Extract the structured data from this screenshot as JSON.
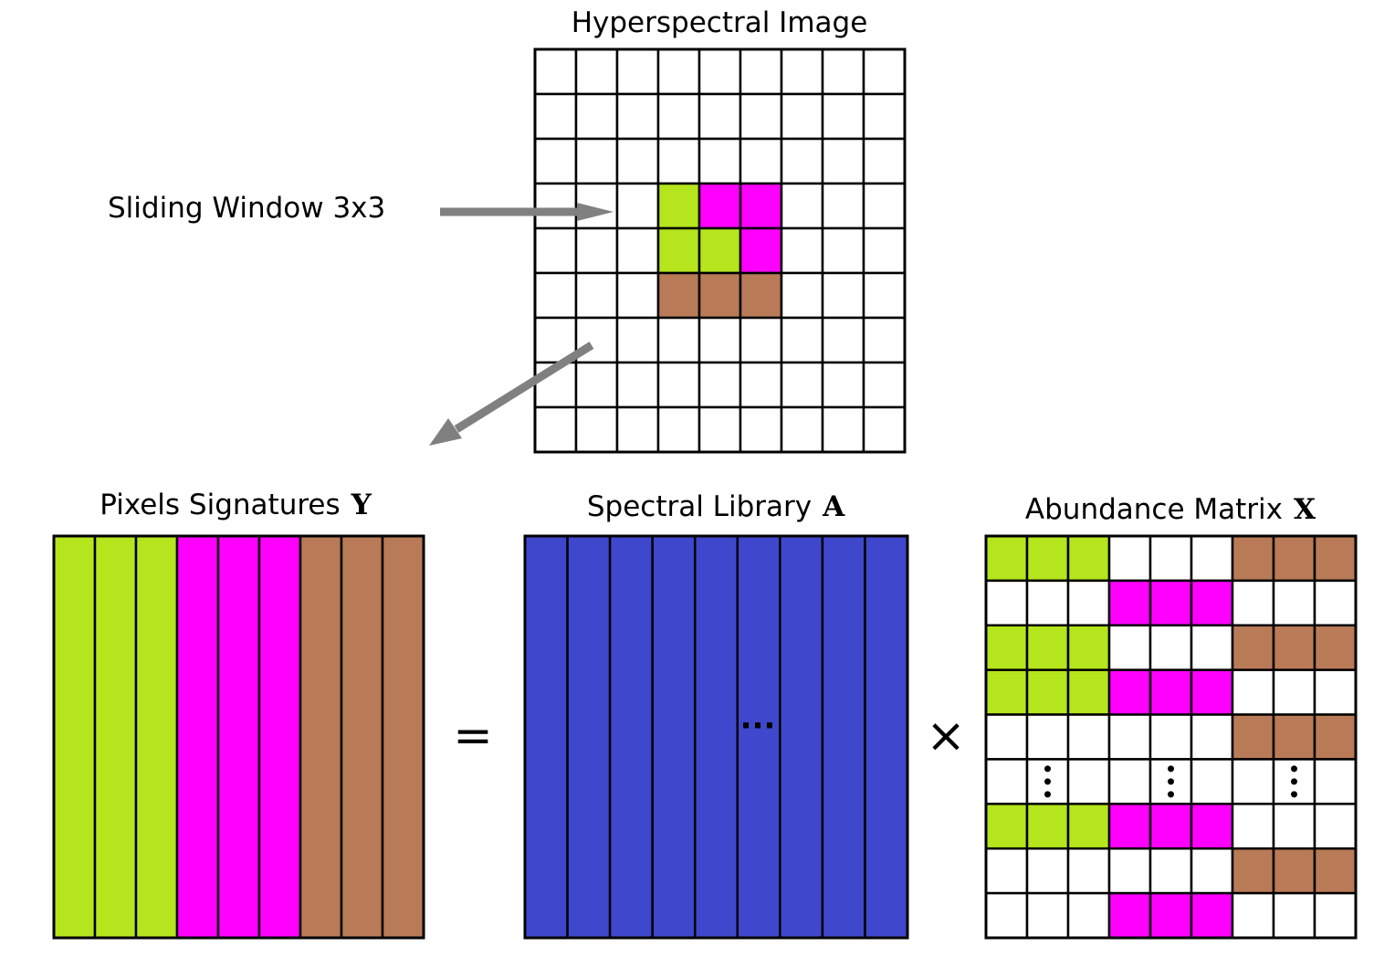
{
  "colors": {
    "green": "#b5e51d",
    "magenta": "#ff00ff",
    "brown": "#b97a57",
    "blue": "#3f48cc",
    "white": "#ffffff",
    "line": "#000000",
    "arrow": "#808080"
  },
  "hyperspectral": {
    "title": "Hyperspectral Image",
    "grid": [
      [
        "w",
        "w",
        "w",
        "w",
        "w",
        "w",
        "w",
        "w",
        "w"
      ],
      [
        "w",
        "w",
        "w",
        "w",
        "w",
        "w",
        "w",
        "w",
        "w"
      ],
      [
        "w",
        "w",
        "w",
        "w",
        "w",
        "w",
        "w",
        "w",
        "w"
      ],
      [
        "w",
        "w",
        "w",
        "g",
        "m",
        "m",
        "w",
        "w",
        "w"
      ],
      [
        "w",
        "w",
        "w",
        "g",
        "g",
        "m",
        "w",
        "w",
        "w"
      ],
      [
        "w",
        "w",
        "w",
        "b",
        "b",
        "b",
        "w",
        "w",
        "w"
      ],
      [
        "w",
        "w",
        "w",
        "w",
        "w",
        "w",
        "w",
        "w",
        "w"
      ],
      [
        "w",
        "w",
        "w",
        "w",
        "w",
        "w",
        "w",
        "w",
        "w"
      ],
      [
        "w",
        "w",
        "w",
        "w",
        "w",
        "w",
        "w",
        "w",
        "w"
      ]
    ]
  },
  "sliding_window": {
    "label": "Sliding Window 3x3"
  },
  "pixels": {
    "title": "Pixels Signatures",
    "symbol": "Y",
    "columns": [
      "g",
      "g",
      "g",
      "m",
      "m",
      "m",
      "b",
      "b",
      "b"
    ]
  },
  "library": {
    "title": "Spectral Library",
    "symbol": "A",
    "columns": 9,
    "ellipsis": "···"
  },
  "abundance": {
    "title": "Abundance Matrix",
    "symbol": "X",
    "grid": [
      [
        "g",
        "g",
        "g",
        "w",
        "w",
        "w",
        "b",
        "b",
        "b"
      ],
      [
        "w",
        "w",
        "w",
        "m",
        "m",
        "m",
        "w",
        "w",
        "w"
      ],
      [
        "g",
        "g",
        "g",
        "w",
        "w",
        "w",
        "b",
        "b",
        "b"
      ],
      [
        "g",
        "g",
        "g",
        "m",
        "m",
        "m",
        "w",
        "w",
        "w"
      ],
      [
        "w",
        "w",
        "w",
        "w",
        "w",
        "w",
        "b",
        "b",
        "b"
      ],
      [
        "w",
        "w",
        "w",
        "w",
        "w",
        "w",
        "w",
        "w",
        "w"
      ],
      [
        "g",
        "g",
        "g",
        "m",
        "m",
        "m",
        "w",
        "w",
        "w"
      ],
      [
        "w",
        "w",
        "w",
        "w",
        "w",
        "w",
        "b",
        "b",
        "b"
      ],
      [
        "w",
        "w",
        "w",
        "m",
        "m",
        "m",
        "w",
        "w",
        "w"
      ]
    ],
    "vdots_row": 5,
    "vdots_cols": [
      1,
      4,
      7
    ]
  },
  "operators": {
    "equals": "=",
    "times": "×"
  }
}
